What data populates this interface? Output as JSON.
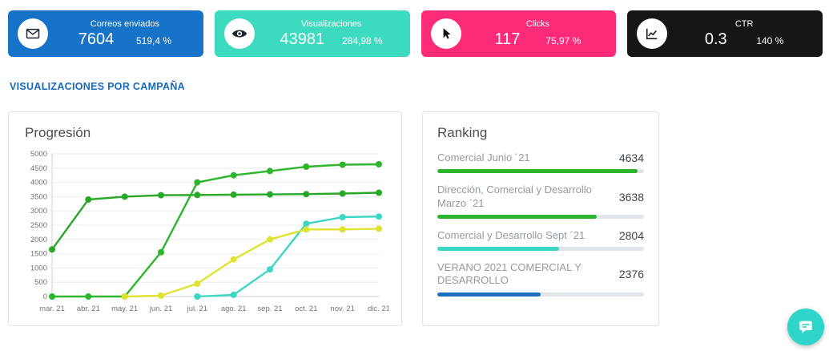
{
  "cards": [
    {
      "label": "Correos enviados",
      "value": "7604",
      "percent": "519,4 %",
      "color": "#1673c7",
      "icon": "envelope-icon"
    },
    {
      "label": "Visualizaciones",
      "value": "43981",
      "percent": "284,98 %",
      "color": "#3cdbc0",
      "icon": "eye-icon"
    },
    {
      "label": "Clicks",
      "value": "117",
      "percent": "75,97 %",
      "color": "#fc2b77",
      "icon": "cursor-icon"
    },
    {
      "label": "CTR",
      "value": "0.3",
      "percent": "140 %",
      "color": "#161616",
      "icon": "line-chart-icon"
    }
  ],
  "section_title": "VISUALIZACIONES POR CAMPAÑA",
  "progression": {
    "title": "Progresión"
  },
  "ranking": {
    "title": "Ranking",
    "items": [
      {
        "name": "Comercial Junio ´21",
        "value": "4634",
        "color": "#2db52d",
        "pct": 97
      },
      {
        "name": "Dirección, Comercial y Desarrollo Marzo ´21",
        "value": "3638",
        "color": "#2db52d",
        "pct": 77
      },
      {
        "name": "Comercial y Desarrollo Sept ´21",
        "value": "2804",
        "color": "#3cd6c5",
        "pct": 59
      },
      {
        "name": "VERANO 2021 COMERCIAL Y DESARROLLO",
        "value": "2376",
        "color": "#1c6fbe",
        "pct": 50
      }
    ]
  },
  "icons": {
    "card_icons": [
      "envelope-icon",
      "eye-icon",
      "cursor-icon",
      "line-chart-icon"
    ],
    "floating": "chat-bubble-icon"
  },
  "chart_data": {
    "type": "line",
    "title": "Progresión",
    "x": [
      "mar. 21",
      "abr. 21",
      "may. 21",
      "jun. 21",
      "jul. 21",
      "ago. 21",
      "sep. 21",
      "oct. 21",
      "nov. 21",
      "dic. 21"
    ],
    "ylim": [
      0,
      5000
    ],
    "ytick_step": 500,
    "grid": "horizontal",
    "legend": "none",
    "series": [
      {
        "name": "Dirección, Comercial y Desarrollo Marzo ´21",
        "color": "#27a827",
        "values": [
          1650,
          3400,
          3500,
          3550,
          3560,
          3570,
          3580,
          3590,
          3610,
          3638
        ]
      },
      {
        "name": "Comercial Junio ´21",
        "color": "#2db52d",
        "values": [
          0,
          0,
          0,
          1550,
          4000,
          4250,
          4400,
          4550,
          4620,
          4634
        ]
      },
      {
        "name": "Comercial y Desarrollo Sept ´21",
        "color": "#3cd6c5",
        "values": [
          null,
          null,
          null,
          null,
          0,
          60,
          950,
          2550,
          2780,
          2804
        ]
      },
      {
        "name": "VERANO 2021 COMERCIAL Y DESARROLLO",
        "color": "#dfe32f",
        "values": [
          null,
          null,
          0,
          30,
          450,
          1300,
          2000,
          2350,
          2350,
          2376
        ]
      }
    ]
  }
}
